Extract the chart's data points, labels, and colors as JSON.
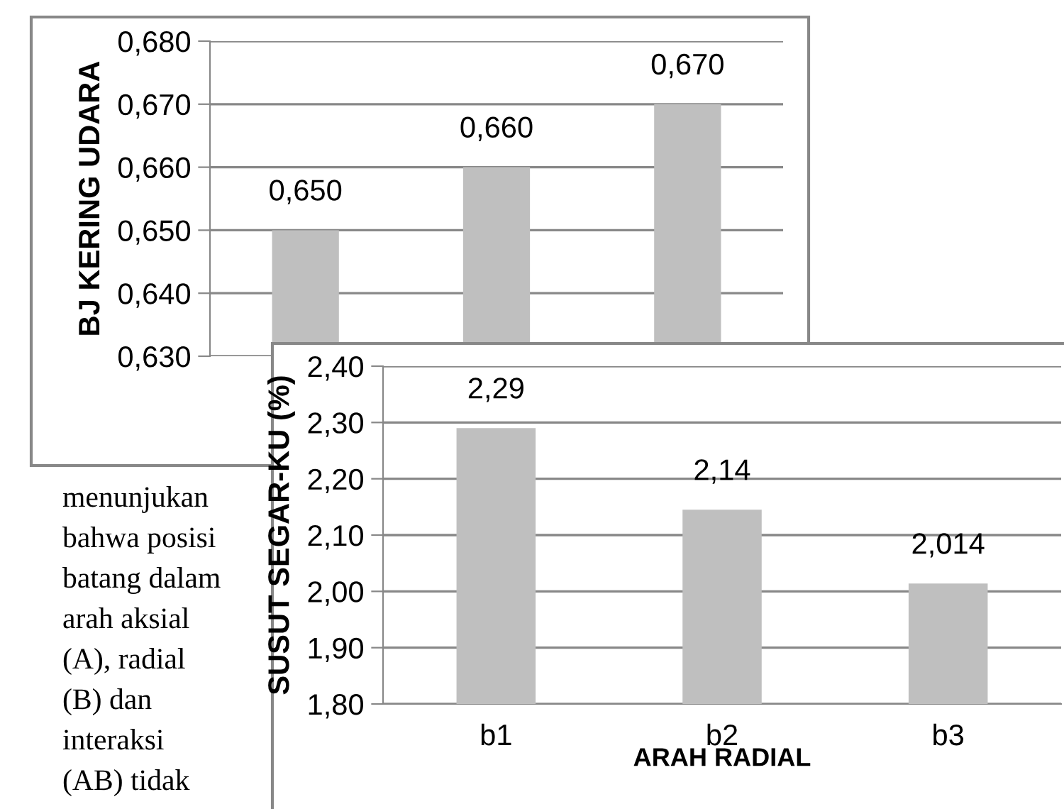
{
  "chart_data": [
    {
      "type": "bar",
      "categories": [
        null,
        null,
        null
      ],
      "values": [
        0.65,
        0.66,
        0.67
      ],
      "color": "#bfbfbf",
      "ylabel": "BJ KERING UDARA",
      "ylim": [
        0.63,
        0.68
      ],
      "yticks": [
        {
          "value": 0.63,
          "label": "0,630"
        },
        {
          "value": 0.64,
          "label": "0,640"
        },
        {
          "value": 0.65,
          "label": "0,650"
        },
        {
          "value": 0.66,
          "label": "0,660"
        },
        {
          "value": 0.67,
          "label": "0,670"
        },
        {
          "value": 0.68,
          "label": "0,680"
        }
      ],
      "value_labels": [
        "0,650",
        "0,660",
        "0,670"
      ],
      "grid": "y",
      "tick_labels": "y"
    },
    {
      "type": "bar",
      "categories": [
        "b1",
        "b2",
        "b3"
      ],
      "values": [
        2.29,
        2.145,
        2.014
      ],
      "color": "#bfbfbf",
      "ylabel": "SUSUT SEGAR-KU (%)",
      "xlabel": "ARAH RADIAL",
      "ylim": [
        1.8,
        2.4
      ],
      "yticks": [
        {
          "value": 1.8,
          "label": "1,80"
        },
        {
          "value": 1.9,
          "label": "1,90"
        },
        {
          "value": 2.0,
          "label": "2,00"
        },
        {
          "value": 2.1,
          "label": "2,10"
        },
        {
          "value": 2.2,
          "label": "2,20"
        },
        {
          "value": 2.3,
          "label": "2,30"
        },
        {
          "value": 2.4,
          "label": "2,40"
        }
      ],
      "value_labels": [
        "2,29",
        "2,14",
        "2,014"
      ],
      "grid": "y"
    },
    {
      "type": "other",
      "annotations": [
        "menunjukan",
        "bahwa posisi",
        "batang dalam",
        "arah aksial",
        "(A), radial",
        "(B) dan",
        "interaksi",
        "(AB) tidak"
      ]
    }
  ]
}
